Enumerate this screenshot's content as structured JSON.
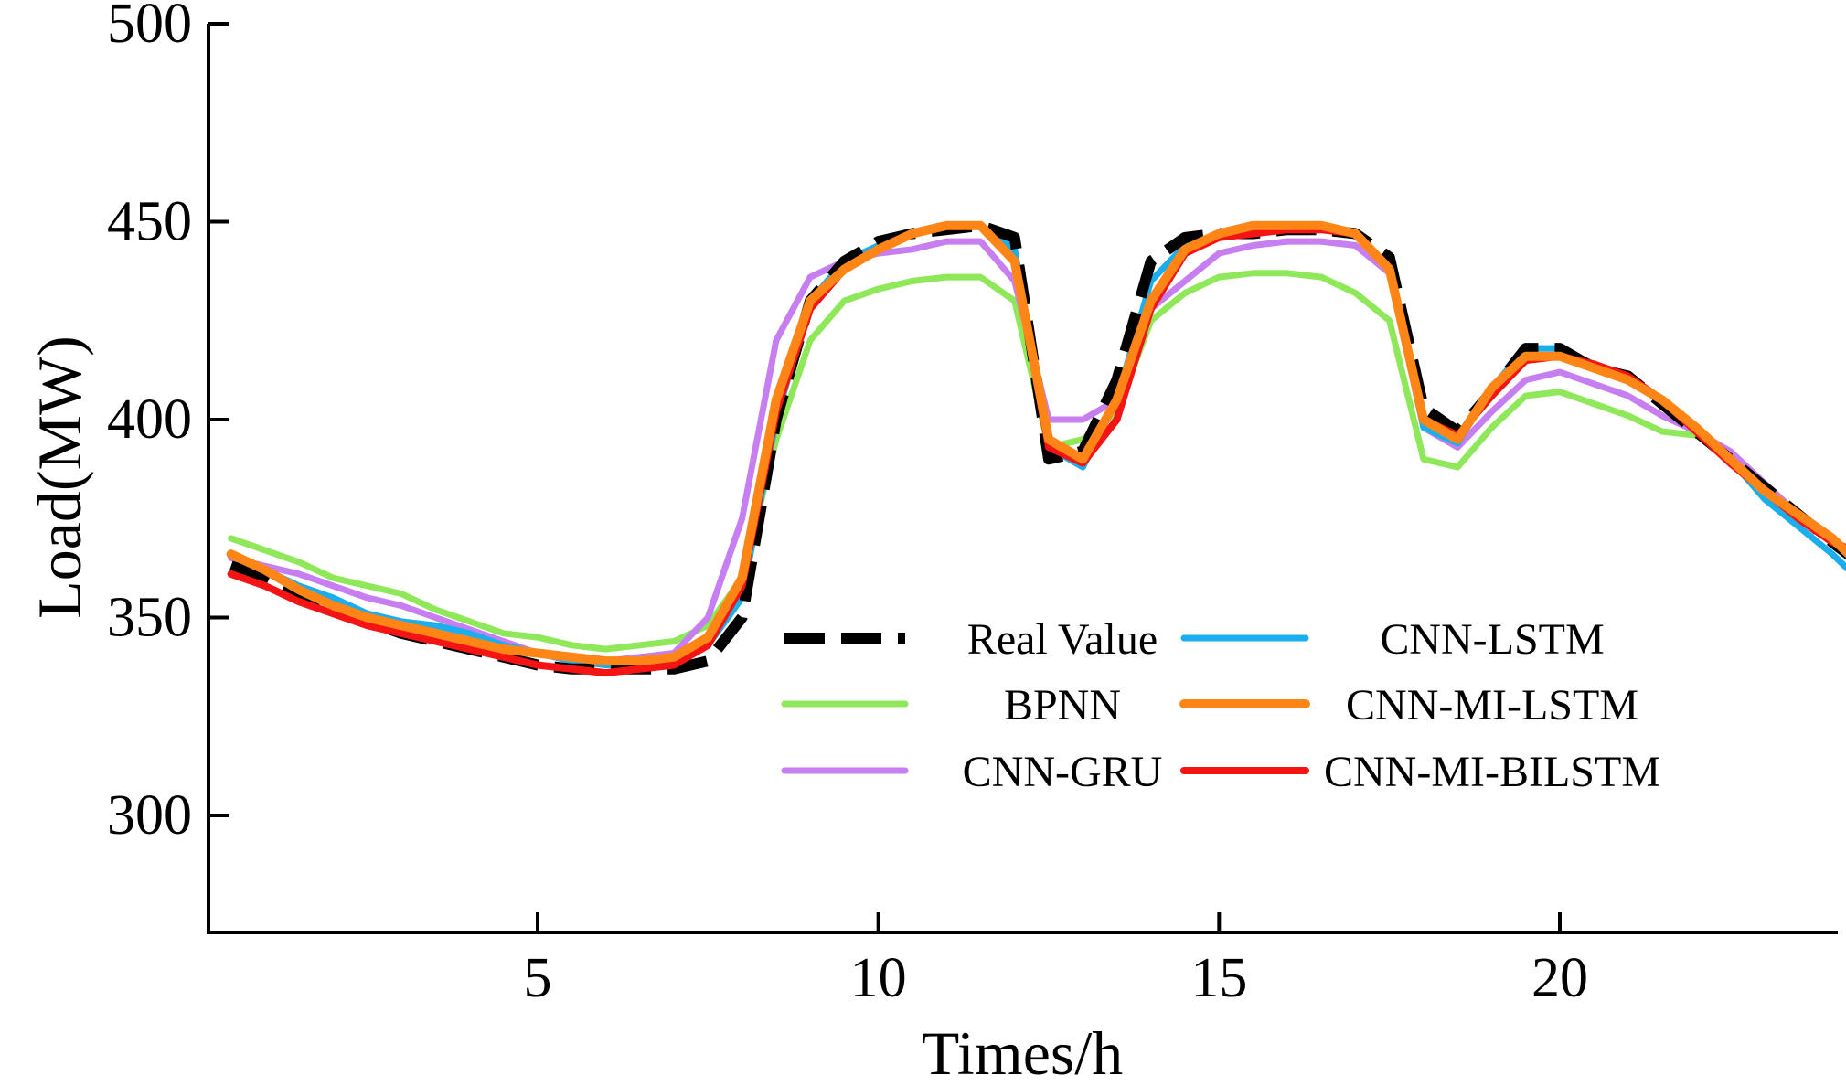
{
  "chart_data": {
    "type": "line",
    "title": "",
    "xlabel": "Times/h",
    "ylabel": "Load(MW)",
    "xlim": [
      0.5,
      24.3
    ],
    "ylim": [
      270,
      500
    ],
    "xticks": [
      5,
      10,
      15,
      20
    ],
    "yticks": [
      300,
      350,
      400,
      450,
      500
    ],
    "legend_position": "center-right",
    "series": [
      {
        "name": "Real Value",
        "color": "#000000",
        "dashed": true,
        "x": [
          0.5,
          1,
          1.5,
          2,
          2.5,
          3,
          3.5,
          4,
          4.5,
          5,
          5.5,
          6,
          6.5,
          7,
          7.5,
          8,
          8.5,
          9,
          9.5,
          10,
          10.5,
          11,
          11.5,
          12,
          12.5,
          13,
          13.5,
          14,
          14.5,
          15,
          15.5,
          16,
          16.5,
          17,
          17.5,
          18,
          18.5,
          19,
          19.5,
          20,
          20.5,
          21,
          21.5,
          22,
          22.5,
          23,
          23.5,
          24,
          24.3
        ],
        "y": [
          363,
          360,
          356,
          352,
          349,
          346,
          344,
          342,
          340,
          338,
          337,
          337,
          337,
          337,
          339,
          350,
          400,
          430,
          440,
          445,
          447,
          448,
          449,
          446,
          390,
          392,
          410,
          440,
          446,
          447,
          447,
          448,
          448,
          447,
          441,
          403,
          397,
          407,
          418,
          418,
          413,
          411,
          404,
          397,
          390,
          383,
          376,
          369,
          365
        ]
      },
      {
        "name": "BPNN",
        "color": "#8fe85a",
        "dashed": false,
        "x": [
          0.5,
          1,
          1.5,
          2,
          2.5,
          3,
          3.5,
          4,
          4.5,
          5,
          5.5,
          6,
          6.5,
          7,
          7.5,
          8,
          8.5,
          9,
          9.5,
          10,
          10.5,
          11,
          11.5,
          12,
          12.5,
          13,
          13.5,
          14,
          14.5,
          15,
          15.5,
          16,
          16.5,
          17,
          17.5,
          18,
          18.5,
          19,
          19.5,
          20,
          20.5,
          21,
          21.5,
          22,
          22.5,
          23,
          23.5,
          24,
          24.3
        ],
        "y": [
          370,
          367,
          364,
          360,
          358,
          356,
          352,
          349,
          346,
          345,
          343,
          342,
          343,
          344,
          348,
          360,
          395,
          420,
          430,
          433,
          435,
          436,
          436,
          430,
          393,
          395,
          402,
          425,
          432,
          436,
          437,
          437,
          436,
          432,
          425,
          390,
          388,
          398,
          406,
          407,
          404,
          401,
          397,
          396,
          392,
          384,
          376,
          369,
          366
        ]
      },
      {
        "name": "CNN-GRU",
        "color": "#c77ef0",
        "dashed": false,
        "x": [
          0.5,
          1,
          1.5,
          2,
          2.5,
          3,
          3.5,
          4,
          4.5,
          5,
          5.5,
          6,
          6.5,
          7,
          7.5,
          8,
          8.5,
          9,
          9.5,
          10,
          10.5,
          11,
          11.5,
          12,
          12.5,
          13,
          13.5,
          14,
          14.5,
          15,
          15.5,
          16,
          16.5,
          17,
          17.5,
          18,
          18.5,
          19,
          19.5,
          20,
          20.5,
          21,
          21.5,
          22,
          22.5,
          23,
          23.5,
          24,
          24.3
        ],
        "y": [
          365,
          363,
          361,
          358,
          355,
          353,
          350,
          347,
          344,
          341,
          339,
          339,
          340,
          341,
          350,
          375,
          420,
          436,
          440,
          442,
          443,
          445,
          445,
          435,
          400,
          400,
          405,
          428,
          435,
          442,
          444,
          445,
          445,
          444,
          437,
          398,
          393,
          402,
          410,
          412,
          409,
          406,
          401,
          397,
          392,
          384,
          376,
          370,
          366
        ]
      },
      {
        "name": "CNN-LSTM",
        "color": "#1aaeee",
        "dashed": false,
        "x": [
          0.5,
          1,
          1.5,
          2,
          2.5,
          3,
          3.5,
          4,
          4.5,
          5,
          5.5,
          6,
          6.5,
          7,
          7.5,
          8,
          8.5,
          9,
          9.5,
          10,
          10.5,
          11,
          11.5,
          12,
          12.5,
          13,
          13.5,
          14,
          14.5,
          15,
          15.5,
          16,
          16.5,
          17,
          17.5,
          18,
          18.5,
          19,
          19.5,
          20,
          20.5,
          21,
          21.5,
          22,
          22.5,
          23,
          23.5,
          24,
          24.3
        ],
        "y": [
          366,
          362,
          358,
          355,
          351,
          349,
          348,
          346,
          343,
          341,
          339,
          338,
          338,
          339,
          343,
          355,
          400,
          430,
          440,
          444,
          447,
          449,
          449,
          443,
          393,
          388,
          405,
          435,
          444,
          446,
          447,
          448,
          448,
          447,
          438,
          398,
          394,
          408,
          418,
          418,
          414,
          411,
          405,
          398,
          390,
          380,
          373,
          366,
          361
        ]
      },
      {
        "name": "CNN-MI-LSTM",
        "color": "#ff8616",
        "dashed": false,
        "x": [
          0.5,
          1,
          1.5,
          2,
          2.5,
          3,
          3.5,
          4,
          4.5,
          5,
          5.5,
          6,
          6.5,
          7,
          7.5,
          8,
          8.5,
          9,
          9.5,
          10,
          10.5,
          11,
          11.5,
          12,
          12.5,
          13,
          13.5,
          14,
          14.5,
          15,
          15.5,
          16,
          16.5,
          17,
          17.5,
          18,
          18.5,
          19,
          19.5,
          20,
          20.5,
          21,
          21.5,
          22,
          22.5,
          23,
          23.5,
          24,
          24.3
        ],
        "y": [
          366,
          362,
          357,
          353,
          350,
          348,
          346,
          344,
          342,
          341,
          340,
          339,
          339,
          340,
          345,
          360,
          405,
          430,
          438,
          443,
          447,
          449,
          449,
          440,
          395,
          390,
          405,
          430,
          443,
          447,
          449,
          449,
          449,
          447,
          438,
          400,
          395,
          408,
          416,
          416,
          413,
          410,
          405,
          398,
          390,
          382,
          376,
          370,
          365
        ]
      },
      {
        "name": "CNN-MI-BILSTM",
        "color": "#f41414",
        "dashed": false,
        "x": [
          0.5,
          1,
          1.5,
          2,
          2.5,
          3,
          3.5,
          4,
          4.5,
          5,
          5.5,
          6,
          6.5,
          7,
          7.5,
          8,
          8.5,
          9,
          9.5,
          10,
          10.5,
          11,
          11.5,
          12,
          12.5,
          13,
          13.5,
          14,
          14.5,
          15,
          15.5,
          16,
          16.5,
          17,
          17.5,
          18,
          18.5,
          19,
          19.5,
          20,
          20.5,
          21,
          21.5,
          22,
          22.5,
          23,
          23.5,
          24,
          24.3
        ],
        "y": [
          361,
          358,
          354,
          351,
          348,
          346,
          344,
          342,
          340,
          338,
          337,
          336,
          337,
          338,
          343,
          358,
          402,
          428,
          438,
          443,
          447,
          449,
          449,
          440,
          393,
          389,
          400,
          428,
          442,
          446,
          447,
          448,
          448,
          447,
          438,
          400,
          396,
          406,
          415,
          416,
          414,
          411,
          405,
          397,
          389,
          382,
          375,
          369,
          367
        ]
      }
    ]
  }
}
